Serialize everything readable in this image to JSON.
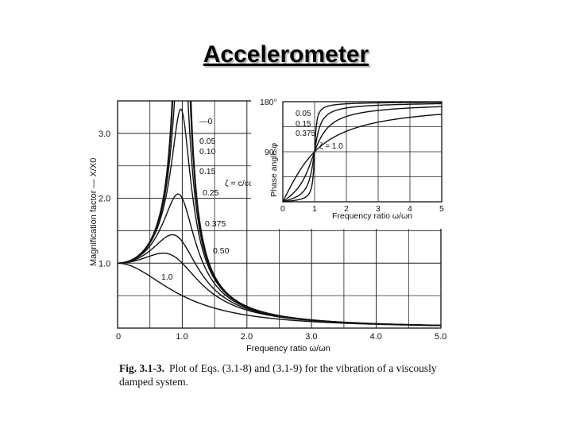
{
  "slide": {
    "title": "Accelerometer"
  },
  "caption": {
    "label": "Fig. 3.1-3.",
    "text": "Plot of Eqs. (3.1-8) and (3.1-9) for the vibration of a viscously damped system."
  },
  "colors": {
    "curve": "#111111",
    "grid": "#222222",
    "background": "#ffffff"
  },
  "chart_data": [
    {
      "type": "line",
      "xlabel": "Frequency ratio ω/ωn",
      "ylabel": "Magnification factor — X/X0",
      "xlim": [
        0,
        5
      ],
      "ylim": [
        0,
        3.5
      ],
      "x_ticks": [
        "0",
        "1.0",
        "2.0",
        "3.0",
        "4.0",
        "5.0"
      ],
      "y_ticks": [
        "1.0",
        "2.0",
        "3.0"
      ],
      "zeta_label": "ζ = c/cc",
      "series": [
        {
          "name": "0",
          "zeta": 0
        },
        {
          "name": "0.05",
          "zeta": 0.05
        },
        {
          "name": "0.10",
          "zeta": 0.1
        },
        {
          "name": "0.15",
          "zeta": 0.15
        },
        {
          "name": "0.25",
          "zeta": 0.25
        },
        {
          "name": "0.375",
          "zeta": 0.375
        },
        {
          "name": "0.50",
          "zeta": 0.5
        },
        {
          "name": "1.0",
          "zeta": 1.0
        }
      ],
      "curve_samples": {
        "x": [
          0,
          0.5,
          1.0,
          1.5,
          2.0,
          3.0,
          5.0
        ],
        "zeta_0.25_y": [
          1.0,
          1.28,
          2.0,
          0.76,
          0.33,
          0.12,
          0.04
        ]
      },
      "grid": true
    },
    {
      "type": "line",
      "xlabel": "Frequency ratio ω/ωn",
      "ylabel": "Phase angle φ",
      "xlim": [
        0,
        5
      ],
      "ylim": [
        0,
        180
      ],
      "x_ticks": [
        "0",
        "1",
        "2",
        "3",
        "4",
        "5"
      ],
      "y_ticks": [
        "90°",
        "180°"
      ],
      "series": [
        {
          "name": "0.05",
          "zeta": 0.05
        },
        {
          "name": "0.15",
          "zeta": 0.15
        },
        {
          "name": "0.375",
          "zeta": 0.375
        },
        {
          "name": "1.0",
          "zeta": 1.0,
          "label": "ζ = 1.0"
        }
      ],
      "grid": true
    }
  ]
}
